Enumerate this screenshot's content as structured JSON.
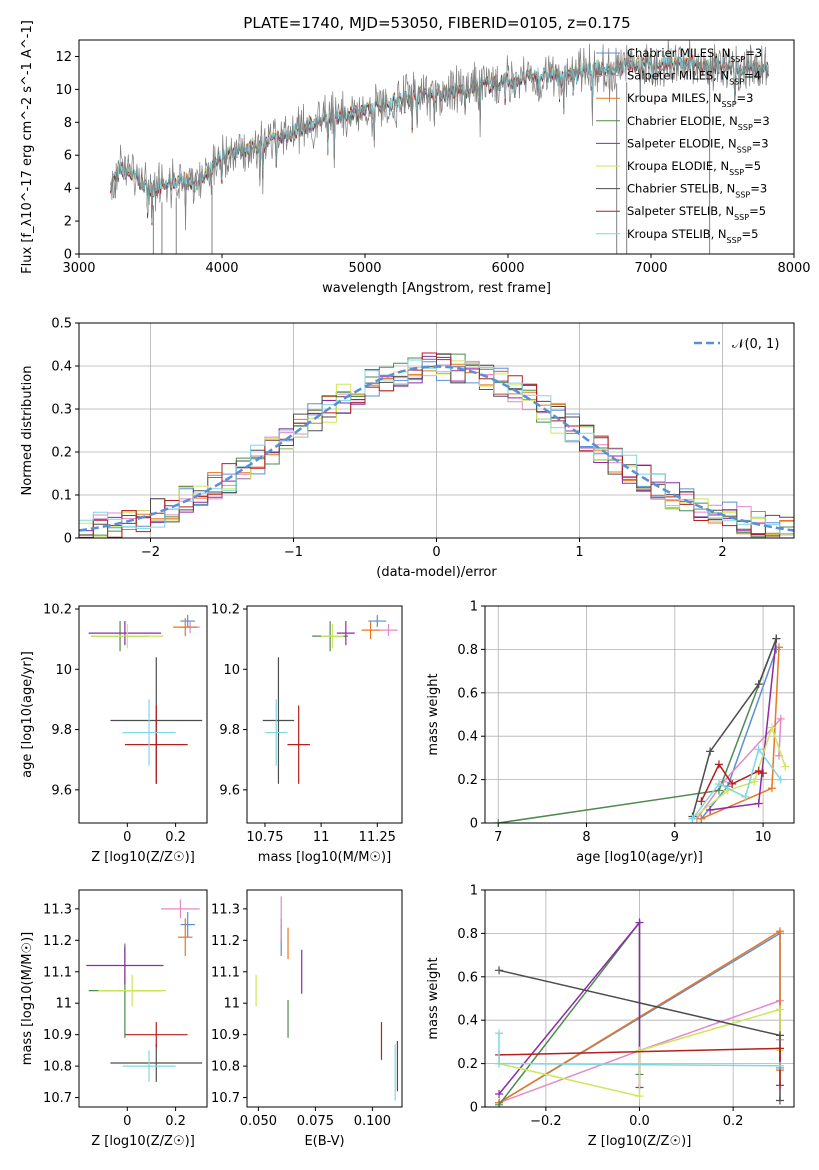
{
  "title": "PLATE=1740, MJD=53050, FIBERID=0105, z=0.175",
  "colors": {
    "Chabrier MILES": "#5b8fd9",
    "Salpeter MILES": "#e28ac7",
    "Kroupa MILES": "#e8771f",
    "Chabrier ELODIE": "#4e8b4e",
    "Salpeter ELODIE": "#8e2aa8",
    "Kroupa ELODIE": "#cde65a",
    "Chabrier STELIB": "#4d4d4d",
    "Salpeter STELIB": "#b51f1f",
    "Kroupa STELIB": "#7fd8e0",
    "data": "#808080",
    "normal": "#5a8fd8"
  },
  "chart_data": [
    {
      "id": "spectrum",
      "type": "line",
      "xlabel": "wavelength [Angstrom, rest frame]",
      "ylabel": "Flux [f_λ10^-17 erg cm^-2 s^-1 A^-1]",
      "xlim": [
        3000,
        8000
      ],
      "ylim": [
        0,
        13
      ],
      "xticks": [
        3000,
        4000,
        5000,
        6000,
        7000,
        8000
      ],
      "yticks": [
        0,
        2,
        4,
        6,
        8,
        10,
        12
      ],
      "legend_position": "top-right",
      "legend": [
        {
          "label": "Chabrier MILES, N",
          "sub": "SSP",
          "suffix": "=3"
        },
        {
          "label": "Salpeter MILES, N",
          "sub": "SSP",
          "suffix": "=4"
        },
        {
          "label": "Kroupa MILES, N",
          "sub": "SSP",
          "suffix": "=3"
        },
        {
          "label": "Chabrier ELODIE, N",
          "sub": "SSP",
          "suffix": "=3"
        },
        {
          "label": "Salpeter ELODIE, N",
          "sub": "SSP",
          "suffix": "=3"
        },
        {
          "label": "Kroupa ELODIE, N",
          "sub": "SSP",
          "suffix": "=5"
        },
        {
          "label": "Chabrier STELIB, N",
          "sub": "SSP",
          "suffix": "=3"
        },
        {
          "label": "Salpeter STELIB, N",
          "sub": "SSP",
          "suffix": "=5"
        },
        {
          "label": "Kroupa STELIB, N",
          "sub": "SSP",
          "suffix": "=5"
        }
      ],
      "continuum": [
        [
          3220,
          4.2
        ],
        [
          3300,
          5.2
        ],
        [
          3400,
          4.6
        ],
        [
          3500,
          3.9
        ],
        [
          3600,
          4.2
        ],
        [
          3700,
          4.5
        ],
        [
          3800,
          4.2
        ],
        [
          3900,
          4.8
        ],
        [
          4000,
          6.0
        ],
        [
          4200,
          6.5
        ],
        [
          4400,
          7.0
        ],
        [
          4600,
          7.8
        ],
        [
          4800,
          8.4
        ],
        [
          5000,
          8.7
        ],
        [
          5200,
          9.3
        ],
        [
          5400,
          9.7
        ],
        [
          5600,
          9.8
        ],
        [
          5800,
          10.2
        ],
        [
          6000,
          10.5
        ],
        [
          6200,
          10.8
        ],
        [
          6400,
          11.0
        ],
        [
          6600,
          11.2
        ],
        [
          6800,
          11.4
        ],
        [
          7000,
          11.6
        ],
        [
          7400,
          11.5
        ],
        [
          7800,
          11.2
        ]
      ],
      "data_range": [
        3220,
        7820
      ]
    },
    {
      "id": "residuals",
      "type": "area",
      "xlabel": "(data-model)/error",
      "ylabel": "Normed distribution",
      "xlim": [
        -2.5,
        2.5
      ],
      "ylim": [
        0,
        0.5
      ],
      "xticks": [
        -2,
        -1,
        0,
        1,
        2
      ],
      "xtick_labels": [
        "−2",
        "−1",
        "0",
        "1",
        "2"
      ],
      "yticks": [
        0,
        0.1,
        0.2,
        0.3,
        0.4,
        0.5
      ],
      "grid": true,
      "legend_position": "top-right",
      "legend_label": "𝒩(0, 1)",
      "bin_edges_start": -2.5,
      "bin_width": 0.1,
      "bins": 50
    },
    {
      "id": "age-vs-Z",
      "type": "scatter",
      "xlabel": "Z [log10(Z/Z☉)]",
      "ylabel": "age [log10(age/yr)]",
      "xlim": [
        -0.2,
        0.33
      ],
      "ylim": [
        9.49,
        10.21
      ],
      "xticks": [
        0.0,
        0.2
      ],
      "yticks": [
        9.6,
        9.8,
        10.0,
        10.2
      ],
      "points": [
        {
          "s": "Chabrier MILES",
          "x": 0.25,
          "y": 10.16,
          "xe": 0.03,
          "ye": 0.02
        },
        {
          "s": "Salpeter MILES",
          "x": 0.26,
          "y": 10.14,
          "xe": 0.04,
          "ye": 0.02
        },
        {
          "s": "Kroupa MILES",
          "x": 0.24,
          "y": 10.14,
          "xe": 0.05,
          "ye": 0.03
        },
        {
          "s": "Chabrier ELODIE",
          "x": -0.03,
          "y": 10.11,
          "xe": 0.12,
          "ye": 0.05
        },
        {
          "s": "Salpeter ELODIE",
          "x": -0.01,
          "y": 10.12,
          "xe": 0.15,
          "ye": 0.04
        },
        {
          "s": "Kroupa ELODIE",
          "x": 0.0,
          "y": 10.11,
          "xe": 0.15,
          "ye": 0.04
        },
        {
          "s": "Chabrier STELIB",
          "x": 0.12,
          "y": 9.83,
          "xe": 0.19,
          "ye": 0.21
        },
        {
          "s": "Salpeter STELIB",
          "x": 0.12,
          "y": 9.75,
          "xe": 0.13,
          "ye": 0.13
        },
        {
          "s": "Kroupa STELIB",
          "x": 0.09,
          "y": 9.79,
          "xe": 0.11,
          "ye": 0.11
        }
      ]
    },
    {
      "id": "age-vs-mass",
      "type": "scatter",
      "xlabel": "mass [log10(M/M☉)]",
      "ylabel": "",
      "xlim": [
        10.67,
        11.36
      ],
      "ylim": [
        9.49,
        10.21
      ],
      "xticks": [
        10.75,
        11.0,
        11.25
      ],
      "yticks": [
        9.6,
        9.8,
        10.0,
        10.2
      ],
      "points": [
        {
          "s": "Chabrier MILES",
          "x": 11.25,
          "y": 10.16,
          "xe": 0.04,
          "ye": 0.02
        },
        {
          "s": "Salpeter MILES",
          "x": 11.3,
          "y": 10.13,
          "xe": 0.04,
          "ye": 0.02
        },
        {
          "s": "Kroupa MILES",
          "x": 11.22,
          "y": 10.13,
          "xe": 0.04,
          "ye": 0.03
        },
        {
          "s": "Chabrier ELODIE",
          "x": 11.04,
          "y": 10.11,
          "xe": 0.08,
          "ye": 0.05
        },
        {
          "s": "Salpeter ELODIE",
          "x": 11.11,
          "y": 10.12,
          "xe": 0.04,
          "ye": 0.04
        },
        {
          "s": "Kroupa ELODIE",
          "x": 11.05,
          "y": 10.11,
          "xe": 0.05,
          "ye": 0.04
        },
        {
          "s": "Chabrier STELIB",
          "x": 10.81,
          "y": 9.83,
          "xe": 0.07,
          "ye": 0.21
        },
        {
          "s": "Salpeter STELIB",
          "x": 10.9,
          "y": 9.75,
          "xe": 0.05,
          "ye": 0.13
        },
        {
          "s": "Kroupa STELIB",
          "x": 10.8,
          "y": 9.79,
          "xe": 0.05,
          "ye": 0.11
        }
      ]
    },
    {
      "id": "weight-vs-age",
      "type": "line",
      "xlabel": "age [log10(age/yr)]",
      "ylabel": "mass weight",
      "xlim": [
        6.85,
        10.35
      ],
      "ylim": [
        0,
        1.0
      ],
      "xticks": [
        7,
        8,
        9,
        10
      ],
      "yticks": [
        0,
        0.2,
        0.4,
        0.6,
        0.8,
        1.0
      ],
      "grid": true,
      "series": [
        {
          "s": "Chabrier MILES",
          "x": [
            9.3,
            9.6,
            10.15
          ],
          "y": [
            0.02,
            0.17,
            0.8
          ]
        },
        {
          "s": "Salpeter MILES",
          "x": [
            9.25,
            9.55,
            10.2,
            10.18
          ],
          "y": [
            0.02,
            0.19,
            0.48,
            0.31
          ]
        },
        {
          "s": "Kroupa MILES",
          "x": [
            9.3,
            10.1,
            10.18
          ],
          "y": [
            0.02,
            0.16,
            0.81
          ]
        },
        {
          "s": "Chabrier ELODIE",
          "x": [
            7.0,
            9.5,
            10.15
          ],
          "y": [
            0.0,
            0.15,
            0.85
          ]
        },
        {
          "s": "Salpeter ELODIE",
          "x": [
            9.4,
            9.95,
            10.15
          ],
          "y": [
            0.06,
            0.09,
            0.85
          ]
        },
        {
          "s": "Kroupa ELODIE",
          "x": [
            9.2,
            9.6,
            9.9,
            10.1,
            10.25
          ],
          "y": [
            0.02,
            0.15,
            0.19,
            0.44,
            0.26
          ]
        },
        {
          "s": "Chabrier STELIB",
          "x": [
            9.2,
            9.4,
            9.95,
            10.15
          ],
          "y": [
            0.03,
            0.33,
            0.64,
            0.85
          ]
        },
        {
          "s": "Salpeter STELIB",
          "x": [
            9.3,
            9.5,
            9.65,
            9.95,
            10.0
          ],
          "y": [
            0.1,
            0.27,
            0.18,
            0.24,
            0.23
          ]
        },
        {
          "s": "Kroupa STELIB",
          "x": [
            9.2,
            9.5,
            9.8,
            9.95,
            10.2
          ],
          "y": [
            0.02,
            0.18,
            0.12,
            0.34,
            0.2
          ]
        }
      ]
    },
    {
      "id": "mass-vs-Z",
      "type": "scatter",
      "xlabel": "Z [log10(Z/Z☉)]",
      "ylabel": "mass [log10(M/M☉)]",
      "xlim": [
        -0.2,
        0.33
      ],
      "ylim": [
        10.67,
        11.36
      ],
      "xticks": [
        0.0,
        0.2
      ],
      "yticks": [
        10.7,
        10.8,
        10.9,
        11.0,
        11.1,
        11.2,
        11.3
      ],
      "points": [
        {
          "s": "Chabrier MILES",
          "x": 0.25,
          "y": 11.25,
          "xe": 0.03,
          "ye": 0.04
        },
        {
          "s": "Salpeter MILES",
          "x": 0.22,
          "y": 11.3,
          "xe": 0.08,
          "ye": 0.03
        },
        {
          "s": "Kroupa MILES",
          "x": 0.24,
          "y": 11.21,
          "xe": 0.03,
          "ye": 0.06
        },
        {
          "s": "Chabrier ELODIE",
          "x": -0.01,
          "y": 11.04,
          "xe": 0.15,
          "ye": 0.15
        },
        {
          "s": "Salpeter ELODIE",
          "x": -0.01,
          "y": 11.12,
          "xe": 0.16,
          "ye": 0.06
        },
        {
          "s": "Kroupa ELODIE",
          "x": 0.02,
          "y": 11.04,
          "xe": 0.14,
          "ye": 0.05
        },
        {
          "s": "Chabrier STELIB",
          "x": 0.12,
          "y": 10.81,
          "xe": 0.19,
          "ye": 0.06
        },
        {
          "s": "Salpeter STELIB",
          "x": 0.12,
          "y": 10.9,
          "xe": 0.13,
          "ye": 0.04
        },
        {
          "s": "Kroupa STELIB",
          "x": 0.09,
          "y": 10.8,
          "xe": 0.11,
          "ye": 0.05
        }
      ]
    },
    {
      "id": "mass-vs-ebv",
      "type": "scatter",
      "xlabel": "E(B-V)",
      "ylabel": "",
      "xlim": [
        0.045,
        0.113
      ],
      "ylim": [
        10.67,
        11.36
      ],
      "xticks": [
        0.05,
        0.075,
        0.1
      ],
      "xtick_labels": [
        "0.050",
        "0.075",
        "0.100"
      ],
      "yticks": [
        10.7,
        10.8,
        10.9,
        11.0,
        11.1,
        11.2,
        11.3
      ],
      "points": [
        {
          "s": "Chabrier MILES",
          "x": 0.06,
          "y": 11.21,
          "xe": 0,
          "ye": 0.06
        },
        {
          "s": "Salpeter MILES",
          "x": 0.06,
          "y": 11.27,
          "xe": 0,
          "ye": 0.07
        },
        {
          "s": "Kroupa MILES",
          "x": 0.063,
          "y": 11.19,
          "xe": 0,
          "ye": 0.05
        },
        {
          "s": "Chabrier ELODIE",
          "x": 0.063,
          "y": 10.95,
          "xe": 0,
          "ye": 0.06
        },
        {
          "s": "Salpeter ELODIE",
          "x": 0.069,
          "y": 11.1,
          "xe": 0,
          "ye": 0.07
        },
        {
          "s": "Kroupa ELODIE",
          "x": 0.049,
          "y": 11.04,
          "xe": 0,
          "ye": 0.05
        },
        {
          "s": "Chabrier STELIB",
          "x": 0.111,
          "y": 10.8,
          "xe": 0,
          "ye": 0.08
        },
        {
          "s": "Salpeter STELIB",
          "x": 0.104,
          "y": 10.88,
          "xe": 0,
          "ye": 0.06
        },
        {
          "s": "Kroupa STELIB",
          "x": 0.11,
          "y": 10.78,
          "xe": 0,
          "ye": 0.09
        }
      ]
    },
    {
      "id": "weight-vs-Z",
      "type": "line",
      "xlabel": "Z [log10(Z/Z☉)]",
      "ylabel": "mass weight",
      "xlim": [
        -0.33,
        0.33
      ],
      "ylim": [
        0,
        1.0
      ],
      "xticks": [
        -0.2,
        0.0,
        0.2
      ],
      "xtick_labels": [
        "−0.2",
        "0.0",
        "0.2"
      ],
      "yticks": [
        0,
        0.2,
        0.4,
        0.6,
        0.8,
        1.0
      ],
      "grid": true,
      "series": [
        {
          "s": "Chabrier MILES",
          "x": [
            -0.3,
            0.3,
            0.3
          ],
          "y": [
            0.02,
            0.8,
            0.18
          ]
        },
        {
          "s": "Salpeter MILES",
          "x": [
            -0.3,
            0.0,
            0.3,
            0.3
          ],
          "y": [
            0.02,
            0.26,
            0.49,
            0.31
          ]
        },
        {
          "s": "Kroupa MILES",
          "x": [
            -0.3,
            0.3,
            0.3
          ],
          "y": [
            0.02,
            0.81,
            0.17
          ]
        },
        {
          "s": "Chabrier ELODIE",
          "x": [
            -0.3,
            0.0,
            0.0
          ],
          "y": [
            0.01,
            0.85,
            0.15
          ]
        },
        {
          "s": "Salpeter ELODIE",
          "x": [
            -0.3,
            0.0,
            0.0
          ],
          "y": [
            0.06,
            0.85,
            0.09
          ]
        },
        {
          "s": "Kroupa ELODIE",
          "x": [
            -0.3,
            0.0,
            0.0,
            0.3,
            0.3
          ],
          "y": [
            0.2,
            0.05,
            0.26,
            0.45,
            0.26
          ]
        },
        {
          "s": "Chabrier STELIB",
          "x": [
            -0.3,
            0.3,
            0.3
          ],
          "y": [
            0.63,
            0.33,
            0.03
          ]
        },
        {
          "s": "Salpeter STELIB",
          "x": [
            -0.3,
            0.3,
            0.3
          ],
          "y": [
            0.24,
            0.27,
            0.1
          ]
        },
        {
          "s": "Kroupa STELIB",
          "x": [
            -0.3,
            -0.3,
            0.3
          ],
          "y": [
            0.34,
            0.2,
            0.19
          ]
        }
      ]
    }
  ]
}
